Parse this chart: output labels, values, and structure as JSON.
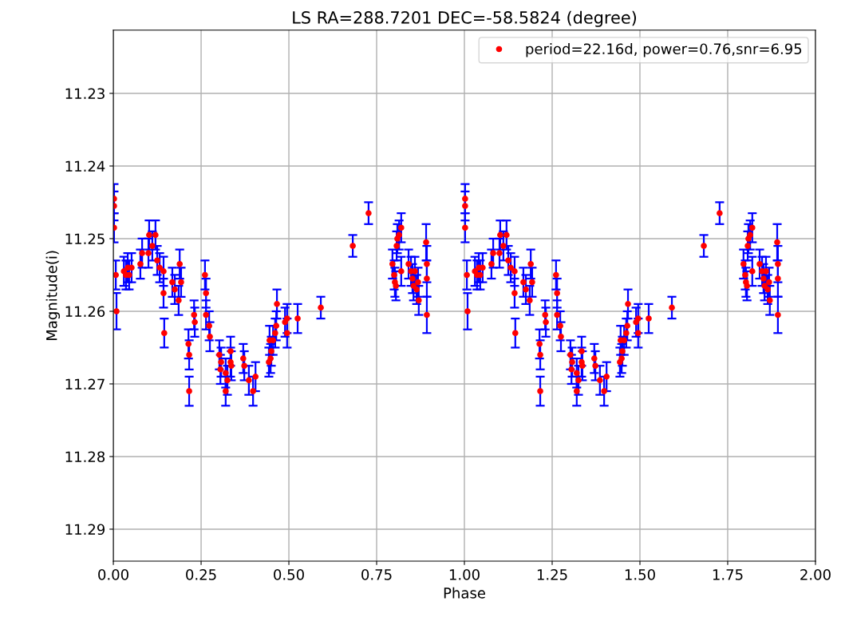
{
  "chart_data": {
    "type": "scatter",
    "title": "LS RA=288.7201 DEC=-58.5824 (degree)",
    "xlabel": "Phase",
    "ylabel": "Magnitude(i)",
    "xlim": [
      0,
      2
    ],
    "ylim": [
      11.2944,
      11.2213
    ],
    "xticks": [
      {
        "value": 0,
        "label": "0.00"
      },
      {
        "value": 0.25,
        "label": "0.25"
      },
      {
        "value": 0.5,
        "label": "0.50"
      },
      {
        "value": 0.75,
        "label": "0.75"
      },
      {
        "value": 1,
        "label": "1.00"
      },
      {
        "value": 1.25,
        "label": "1.25"
      },
      {
        "value": 1.5,
        "label": "1.50"
      },
      {
        "value": 1.75,
        "label": "1.75"
      },
      {
        "value": 2,
        "label": "2.00"
      }
    ],
    "yticks": [
      11.23,
      11.24,
      11.25,
      11.26,
      11.27,
      11.28,
      11.29
    ],
    "grid": true,
    "legend": "top right",
    "marker": "circle",
    "series": [
      {
        "name": "period=22.16d, power=0.76,snr=6.95",
        "color": "#ff0000",
        "x": [
          0.002,
          0.002,
          0.002,
          0.007,
          0.009,
          0.03,
          0.036,
          0.041,
          0.045,
          0.052,
          0.077,
          0.082,
          0.1,
          0.102,
          0.111,
          0.12,
          0.125,
          0.132,
          0.143,
          0.145,
          0.143,
          0.168,
          0.175,
          0.186,
          0.189,
          0.193,
          0.214,
          0.216,
          0.216,
          0.23,
          0.232,
          0.261,
          0.264,
          0.264,
          0.273,
          0.275,
          0.302,
          0.307,
          0.305,
          0.32,
          0.32,
          0.325,
          0.334,
          0.334,
          0.336,
          0.37,
          0.373,
          0.386,
          0.398,
          0.405,
          0.443,
          0.448,
          0.45,
          0.445,
          0.455,
          0.461,
          0.464,
          0.466,
          0.489,
          0.495,
          0.495,
          0.525,
          0.591,
          0.682,
          0.727,
          0.795,
          0.8,
          0.802,
          0.805,
          0.807,
          0.809,
          0.814,
          0.82,
          0.82,
          0.841,
          0.848,
          0.852,
          0.855,
          0.859,
          0.864,
          0.868,
          0.87,
          0.891,
          0.893,
          0.893,
          0.893,
          1.002,
          1.002,
          1.002,
          1.007,
          1.009,
          1.03,
          1.036,
          1.041,
          1.045,
          1.052,
          1.077,
          1.082,
          1.1,
          1.102,
          1.111,
          1.12,
          1.125,
          1.132,
          1.143,
          1.145,
          1.143,
          1.168,
          1.175,
          1.186,
          1.189,
          1.193,
          1.214,
          1.216,
          1.216,
          1.23,
          1.232,
          1.261,
          1.264,
          1.264,
          1.273,
          1.275,
          1.302,
          1.307,
          1.305,
          1.32,
          1.32,
          1.325,
          1.334,
          1.334,
          1.336,
          1.37,
          1.373,
          1.386,
          1.398,
          1.405,
          1.443,
          1.448,
          1.45,
          1.445,
          1.455,
          1.461,
          1.464,
          1.466,
          1.489,
          1.495,
          1.495,
          1.525,
          1.591,
          1.682,
          1.727,
          1.795,
          1.8,
          1.802,
          1.805,
          1.807,
          1.809,
          1.814,
          1.82,
          1.82,
          1.841,
          1.848,
          1.852,
          1.855,
          1.859,
          1.864,
          1.868,
          1.87,
          1.891,
          1.893,
          1.893,
          1.893
        ],
        "values": [
          11.2455,
          11.2445,
          11.2485,
          11.255,
          11.26,
          11.2545,
          11.255,
          11.254,
          11.255,
          11.254,
          11.2535,
          11.252,
          11.252,
          11.2495,
          11.251,
          11.2495,
          11.253,
          11.254,
          11.2575,
          11.263,
          11.2545,
          11.256,
          11.257,
          11.2585,
          11.2535,
          11.256,
          11.2645,
          11.266,
          11.271,
          11.2605,
          11.2615,
          11.255,
          11.2575,
          11.2605,
          11.262,
          11.2635,
          11.266,
          11.267,
          11.268,
          11.2685,
          11.271,
          11.2695,
          11.2655,
          11.267,
          11.2675,
          11.2665,
          11.2675,
          11.2695,
          11.271,
          11.269,
          11.267,
          11.2665,
          11.2655,
          11.264,
          11.264,
          11.263,
          11.262,
          11.259,
          11.2615,
          11.261,
          11.263,
          11.261,
          11.2595,
          11.251,
          11.2465,
          11.2535,
          11.255,
          11.256,
          11.2565,
          11.251,
          11.25,
          11.2495,
          11.2485,
          11.2545,
          11.2535,
          11.2545,
          11.2555,
          11.2565,
          11.2545,
          11.257,
          11.256,
          11.2585,
          11.2505,
          11.2535,
          11.2555,
          11.2605,
          11.2455,
          11.2445,
          11.2485,
          11.255,
          11.26,
          11.2545,
          11.255,
          11.254,
          11.255,
          11.254,
          11.2535,
          11.252,
          11.252,
          11.2495,
          11.251,
          11.2495,
          11.253,
          11.254,
          11.2575,
          11.263,
          11.2545,
          11.256,
          11.257,
          11.2585,
          11.2535,
          11.256,
          11.2645,
          11.266,
          11.271,
          11.2605,
          11.2615,
          11.255,
          11.2575,
          11.2605,
          11.262,
          11.2635,
          11.266,
          11.267,
          11.268,
          11.2685,
          11.271,
          11.2695,
          11.2655,
          11.267,
          11.2675,
          11.2665,
          11.2675,
          11.2695,
          11.271,
          11.269,
          11.267,
          11.2665,
          11.2655,
          11.264,
          11.264,
          11.263,
          11.262,
          11.259,
          11.2615,
          11.261,
          11.263,
          11.261,
          11.2595,
          11.251,
          11.2465,
          11.2535,
          11.255,
          11.256,
          11.2565,
          11.251,
          11.25,
          11.2495,
          11.2485,
          11.2545,
          11.2535,
          11.2545,
          11.2555,
          11.2565,
          11.2545,
          11.257,
          11.256,
          11.2585,
          11.2505,
          11.2535,
          11.2555,
          11.2605
        ],
        "errors": [
          0.002,
          0.002,
          0.002,
          0.002,
          0.0025,
          0.002,
          0.002,
          0.002,
          0.002,
          0.002,
          0.002,
          0.002,
          0.002,
          0.002,
          0.002,
          0.002,
          0.002,
          0.002,
          0.002,
          0.002,
          0.002,
          0.002,
          0.002,
          0.002,
          0.002,
          0.002,
          0.002,
          0.002,
          0.002,
          0.002,
          0.002,
          0.002,
          0.002,
          0.002,
          0.002,
          0.002,
          0.002,
          0.002,
          0.002,
          0.002,
          0.002,
          0.002,
          0.002,
          0.002,
          0.002,
          0.002,
          0.002,
          0.002,
          0.002,
          0.002,
          0.002,
          0.002,
          0.002,
          0.002,
          0.002,
          0.002,
          0.002,
          0.002,
          0.002,
          0.002,
          0.002,
          0.002,
          0.0015,
          0.0015,
          0.0015,
          0.002,
          0.002,
          0.002,
          0.002,
          0.002,
          0.002,
          0.002,
          0.002,
          0.002,
          0.002,
          0.002,
          0.002,
          0.002,
          0.002,
          0.002,
          0.002,
          0.002,
          0.0025,
          0.0025,
          0.0025,
          0.0025,
          0.002,
          0.002,
          0.002,
          0.002,
          0.0025,
          0.002,
          0.002,
          0.002,
          0.002,
          0.002,
          0.002,
          0.002,
          0.002,
          0.002,
          0.002,
          0.002,
          0.002,
          0.002,
          0.002,
          0.002,
          0.002,
          0.002,
          0.002,
          0.002,
          0.002,
          0.002,
          0.002,
          0.002,
          0.002,
          0.002,
          0.002,
          0.002,
          0.002,
          0.002,
          0.002,
          0.002,
          0.002,
          0.002,
          0.002,
          0.002,
          0.002,
          0.002,
          0.002,
          0.002,
          0.002,
          0.002,
          0.002,
          0.002,
          0.002,
          0.002,
          0.002,
          0.002,
          0.002,
          0.002,
          0.002,
          0.002,
          0.002,
          0.002,
          0.002,
          0.002,
          0.002,
          0.002,
          0.0015,
          0.0015,
          0.0015,
          0.002,
          0.002,
          0.002,
          0.002,
          0.002,
          0.002,
          0.002,
          0.002,
          0.002,
          0.002,
          0.002,
          0.002,
          0.002,
          0.002,
          0.002,
          0.002,
          0.002,
          0.0025,
          0.0025,
          0.0025,
          0.0025
        ]
      }
    ]
  }
}
